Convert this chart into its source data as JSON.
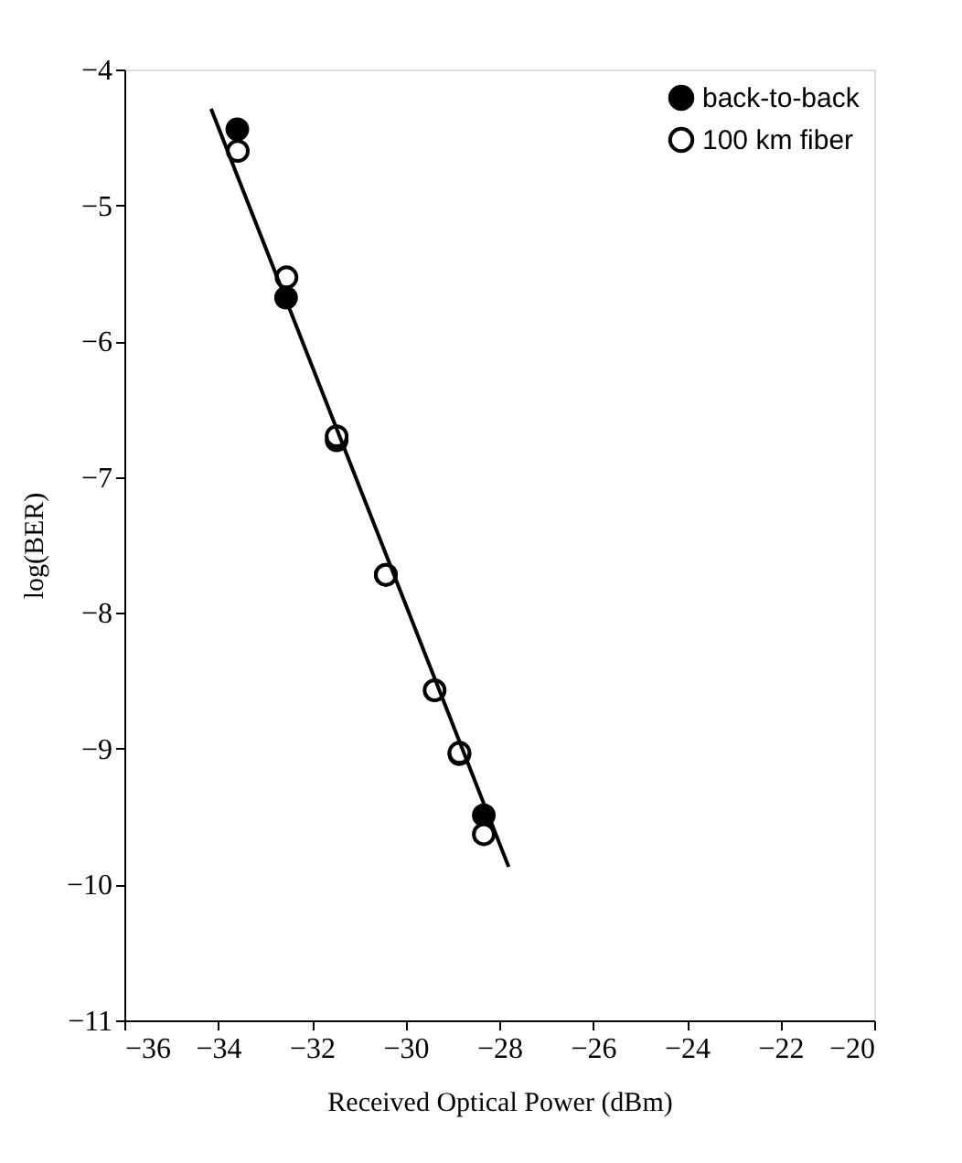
{
  "chart_data": {
    "type": "scatter",
    "xlabel": "Received Optical Power (dBm)",
    "ylabel": "log(BER)",
    "xlim": [
      -36,
      -20
    ],
    "xticks": [
      -36,
      -34,
      -32,
      -30,
      -28,
      -26,
      -24,
      -22,
      -20
    ],
    "ylim": [
      -11,
      -4
    ],
    "yticks": [
      -11,
      -10,
      -9,
      -8,
      -7,
      -6,
      -5,
      -4
    ],
    "grid": false,
    "legend": "top right",
    "marker": "circle",
    "series": [
      {
        "name": "back-to-back",
        "color": "#000000",
        "x": [
          -33.59,
          -32.55,
          -31.47,
          -30.42,
          -28.85,
          -28.33
        ],
        "values": [
          -4.44,
          -5.68,
          -6.73,
          -7.72,
          -9.04,
          -9.49
        ]
      },
      {
        "name": "100 km fiber",
        "color": "#ffffff",
        "x": [
          -33.58,
          -32.54,
          -31.47,
          -30.42,
          -29.38,
          -28.85,
          -28.33
        ],
        "values": [
          -4.6,
          -5.53,
          -6.7,
          -7.72,
          -8.57,
          -9.03,
          -9.63
        ]
      },
      {
        "type": "line",
        "color": "#000000",
        "line_style": "solid",
        "marker": "none",
        "x": [
          -34.15,
          -27.8
        ],
        "values": [
          -4.29,
          -9.87
        ]
      }
    ]
  }
}
